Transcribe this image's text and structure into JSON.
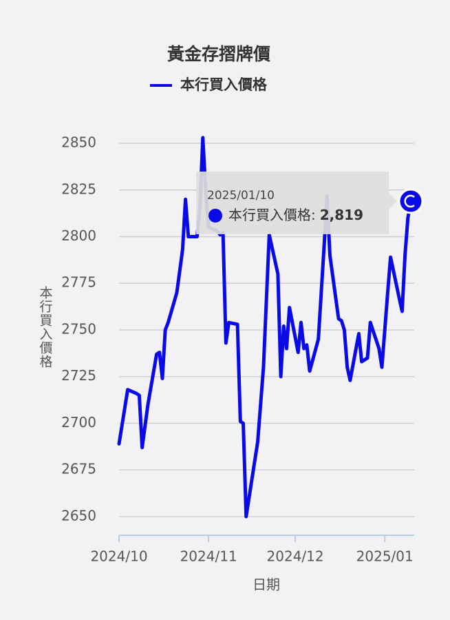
{
  "chart_data": {
    "type": "line",
    "title": "黃金存摺牌價",
    "x_label": "日期",
    "y_label": "本行買入價格",
    "x": [
      "2024/10/01",
      "2024/10/04",
      "2024/10/07",
      "2024/10/08",
      "2024/10/09",
      "2024/10/11",
      "2024/10/14",
      "2024/10/15",
      "2024/10/16",
      "2024/10/17",
      "2024/10/18",
      "2024/10/21",
      "2024/10/23",
      "2024/10/24",
      "2024/10/25",
      "2024/10/28",
      "2024/10/29",
      "2024/10/30",
      "2024/10/31",
      "2024/11/01",
      "2024/11/04",
      "2024/11/05",
      "2024/11/06",
      "2024/11/07",
      "2024/11/08",
      "2024/11/11",
      "2024/11/12",
      "2024/11/13",
      "2024/11/14",
      "2024/11/18",
      "2024/11/20",
      "2024/11/22",
      "2024/11/25",
      "2024/11/26",
      "2024/11/27",
      "2024/11/28",
      "2024/11/29",
      "2024/12/02",
      "2024/12/03",
      "2024/12/04",
      "2024/12/05",
      "2024/12/06",
      "2024/12/09",
      "2024/12/10",
      "2024/12/11",
      "2024/12/12",
      "2024/12/13",
      "2024/12/16",
      "2024/12/17",
      "2024/12/18",
      "2024/12/19",
      "2024/12/20",
      "2024/12/23",
      "2024/12/24",
      "2024/12/26",
      "2024/12/27",
      "2024/12/30",
      "2024/12/31",
      "2025/01/02",
      "2025/01/03",
      "2025/01/06",
      "2025/01/07",
      "2025/01/08",
      "2025/01/09",
      "2025/01/10"
    ],
    "series": [
      {
        "name": "本行買入價格",
        "color": "#0a0ae6",
        "values": [
          2689,
          2718,
          2716,
          2715,
          2687,
          2710,
          2737,
          2738,
          2724,
          2750,
          2754,
          2770,
          2793,
          2820,
          2800,
          2800,
          2815,
          2853,
          2825,
          2805,
          2803,
          2801,
          2802,
          2743,
          2754,
          2753,
          2701,
          2700,
          2650,
          2690,
          2730,
          2801,
          2780,
          2725,
          2752,
          2740,
          2762,
          2738,
          2754,
          2740,
          2742,
          2728,
          2745,
          2770,
          2795,
          2822,
          2790,
          2756,
          2755,
          2750,
          2730,
          2723,
          2748,
          2733,
          2735,
          2754,
          2740,
          2730,
          2770,
          2789,
          2767,
          2760,
          2790,
          2810,
          2819
        ]
      }
    ],
    "tooltip": {
      "separator": ":",
      "value_label": "2,819"
    },
    "xlim": [
      "2024/10/01",
      "2025/01/10"
    ],
    "xticks": [
      {
        "value": "2024/10/01",
        "label": "2024/10"
      },
      {
        "value": "2024/11/01",
        "label": "2024/11"
      },
      {
        "value": "2024/12/01",
        "label": "2024/12"
      },
      {
        "value": "2025/01/01",
        "label": "2025/01"
      }
    ],
    "ylim": [
      2640,
      2855
    ],
    "yticks": [
      2650,
      2675,
      2700,
      2725,
      2750,
      2775,
      2800,
      2825,
      2850
    ],
    "grid": true
  }
}
